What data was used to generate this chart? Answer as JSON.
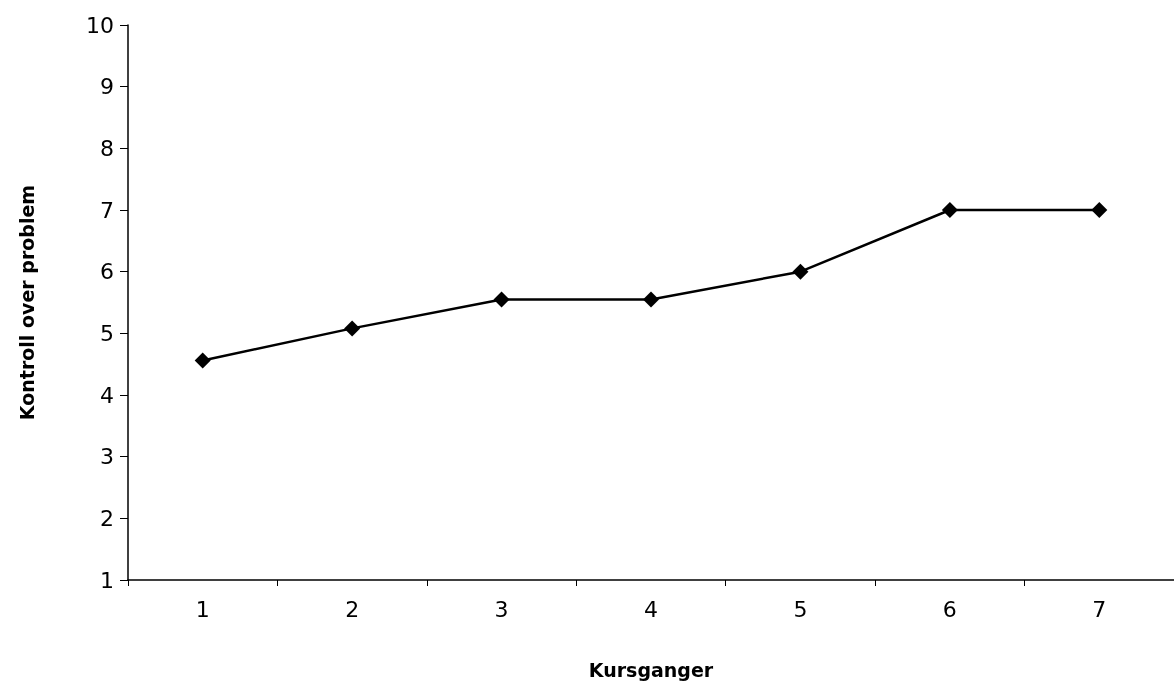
{
  "chart_data": {
    "type": "line",
    "xlabel": "Kursganger",
    "ylabel": "Kontroll over problem",
    "categories": [
      "1",
      "2",
      "3",
      "4",
      "5",
      "6",
      "7"
    ],
    "series": [
      {
        "color": "#000000",
        "values": [
          4.56,
          5.08,
          5.55,
          5.55,
          6.0,
          7.0,
          7.0
        ]
      }
    ],
    "ylim": [
      1,
      10
    ],
    "yticks": [
      1,
      2,
      3,
      4,
      5,
      6,
      7,
      8,
      9,
      10
    ],
    "grid": false,
    "marker": "diamond",
    "line_style": "solid"
  }
}
